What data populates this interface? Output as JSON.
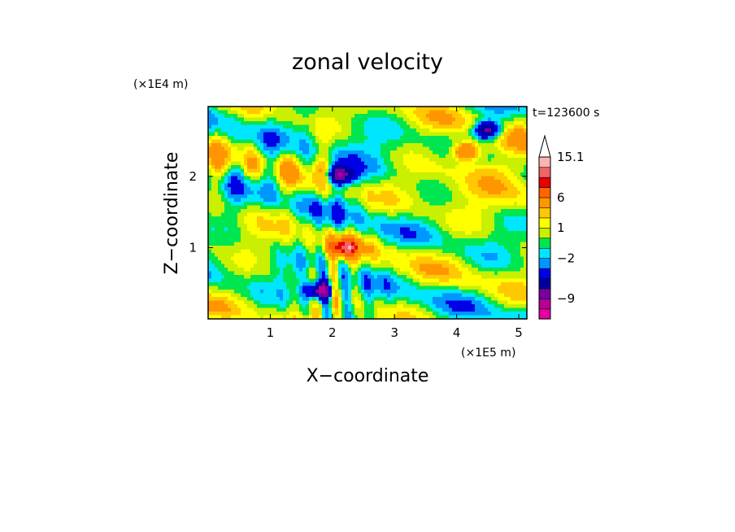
{
  "chart_data": {
    "type": "heatmap",
    "title": "zonal velocity",
    "xlabel": "X−coordinate",
    "ylabel": "Z−coordinate",
    "x_multiplier_label": "(×1E5 m)",
    "y_multiplier_label": "(×1E4 m)",
    "time_label": "t=123600 s",
    "xlim": [
      0,
      5.13
    ],
    "ylim": [
      0,
      2.98
    ],
    "x_ticks": [
      1,
      2,
      3,
      4,
      5
    ],
    "x_tick_labels": [
      "1",
      "2",
      "3",
      "4",
      "5"
    ],
    "y_ticks": [
      1,
      2
    ],
    "y_tick_labels": [
      "1",
      "2"
    ],
    "colorbar": {
      "levels": [
        -13,
        -11,
        -9,
        -7,
        -5,
        -3,
        -2,
        -1,
        0,
        1,
        2,
        3,
        6,
        8,
        10,
        12,
        15.1
      ],
      "labeled_levels": [
        15.1,
        6,
        1,
        -2,
        -9
      ],
      "labeled_text": [
        "15.1",
        "6",
        "1",
        "−2",
        "−9"
      ],
      "colors": [
        "#e600a0",
        "#b40096",
        "#7800a0",
        "#0000a0",
        "#0000e6",
        "#0096ff",
        "#00e6ff",
        "#00e650",
        "#c8f000",
        "#ffff00",
        "#ffc800",
        "#ff9600",
        "#ff6400",
        "#e60000",
        "#f06464",
        "#ffb4b4"
      ],
      "extend": "max"
    },
    "features": [
      {
        "x": 1.8,
        "z": 0.4,
        "kind": "min",
        "amp": -10
      },
      {
        "x": 2.2,
        "z": 1.0,
        "kind": "max",
        "amp": 9
      },
      {
        "x": 4.15,
        "z": 2.35,
        "kind": "max",
        "amp": 8
      },
      {
        "x": 4.5,
        "z": 2.65,
        "kind": "min",
        "amp": -10
      },
      {
        "x": 2.1,
        "z": 2.0,
        "kind": "min",
        "amp": -8
      }
    ]
  }
}
